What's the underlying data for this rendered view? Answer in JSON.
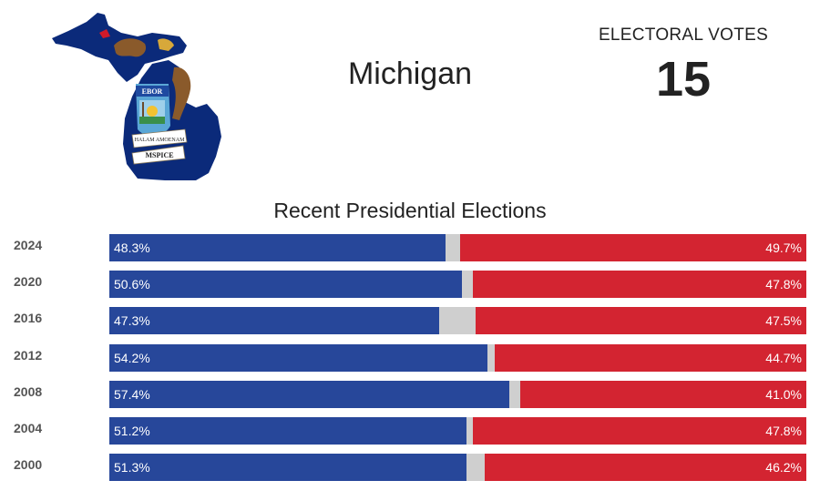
{
  "header": {
    "state_name": "Michigan",
    "electoral_label": "ELECTORAL VOTES",
    "electoral_votes": "15"
  },
  "map": {
    "icon": "michigan-state-flag-map",
    "colors": {
      "field": "#0b2a7a",
      "accent": "#d11a2a",
      "gold": "#d7a83a"
    },
    "seal_text": [
      "EBOR",
      "TUEBOR",
      "SI QUAERIS PENINSULAM AMOENAM",
      "CIRCUMSPICE"
    ]
  },
  "chart_data": {
    "type": "bar",
    "orientation": "horizontal",
    "stacked": true,
    "title": "Recent Presidential Elections",
    "categories": [
      "2024",
      "2020",
      "2016",
      "2012",
      "2008",
      "2004",
      "2000"
    ],
    "series": [
      {
        "key": "dem",
        "values": [
          48.3,
          50.6,
          47.3,
          54.2,
          57.4,
          51.2,
          51.3
        ],
        "labels": [
          "48.3%",
          "50.6%",
          "47.3%",
          "54.2%",
          "57.4%",
          "51.2%",
          "51.3%"
        ]
      },
      {
        "key": "other",
        "values": [
          2.0,
          1.6,
          5.2,
          1.1,
          1.6,
          1.0,
          2.5
        ]
      },
      {
        "key": "rep",
        "values": [
          49.7,
          47.8,
          47.5,
          44.7,
          41.0,
          47.8,
          46.2
        ],
        "labels": [
          "49.7%",
          "47.8%",
          "47.5%",
          "44.7%",
          "41.0%",
          "47.8%",
          "46.2%"
        ]
      }
    ],
    "colors": {
      "dem": "#27479a",
      "other": "#cfcfcf",
      "rep": "#d32431"
    },
    "xlim": [
      0,
      100
    ],
    "grid": false,
    "legend": "none"
  }
}
